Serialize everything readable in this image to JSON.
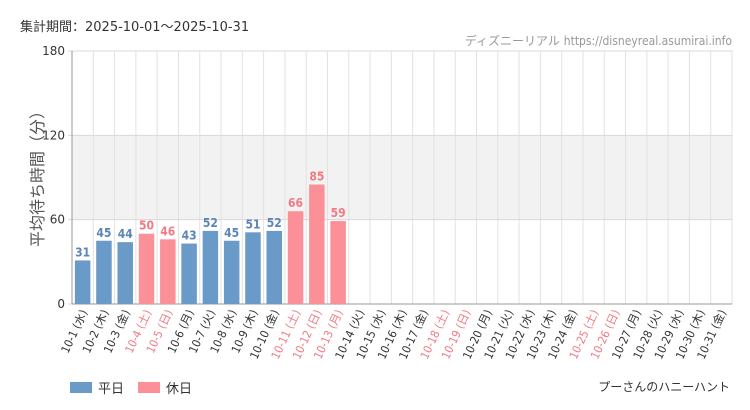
{
  "header": {
    "period": "集計期間：2025-10-01〜2025-10-31",
    "site": "ディズニーリアル",
    "url": "https://disneyreal.asumirai.info"
  },
  "footer": {
    "attraction": "プーさんのハニーハント"
  },
  "colors": {
    "weekday": "#6a9ac8",
    "holiday": "#fc9098",
    "weekday_text": "#5b85b5",
    "holiday_text": "#f07a85",
    "band": "#f2f2f2",
    "grid": "#e2e2e2"
  },
  "chart_data": {
    "type": "bar",
    "ylabel": "平均待ち時間（分）",
    "ylim": [
      0,
      180
    ],
    "yticks": [
      0,
      60,
      120,
      180
    ],
    "shaded_band": [
      60,
      120
    ],
    "grid": true,
    "legend_position": "bottom-left",
    "legend": [
      {
        "name": "平日",
        "type": "weekday"
      },
      {
        "name": "休日",
        "type": "holiday"
      }
    ],
    "categories": [
      "10-1 (水)",
      "10-2 (木)",
      "10-3 (金)",
      "10-4 (土)",
      "10-5 (日)",
      "10-6 (月)",
      "10-7 (火)",
      "10-8 (水)",
      "10-9 (木)",
      "10-10 (金)",
      "10-11 (土)",
      "10-12 (日)",
      "10-13 (月)",
      "10-14 (火)",
      "10-15 (水)",
      "10-16 (木)",
      "10-17 (金)",
      "10-18 (土)",
      "10-19 (日)",
      "10-20 (月)",
      "10-21 (火)",
      "10-22 (水)",
      "10-23 (木)",
      "10-24 (金)",
      "10-25 (土)",
      "10-26 (日)",
      "10-27 (月)",
      "10-28 (火)",
      "10-29 (水)",
      "10-30 (木)",
      "10-31 (金)"
    ],
    "day_types": [
      "weekday",
      "weekday",
      "weekday",
      "holiday",
      "holiday",
      "weekday",
      "weekday",
      "weekday",
      "weekday",
      "weekday",
      "holiday",
      "holiday",
      "holiday",
      "weekday",
      "weekday",
      "weekday",
      "weekday",
      "holiday",
      "holiday",
      "weekday",
      "weekday",
      "weekday",
      "weekday",
      "weekday",
      "holiday",
      "holiday",
      "weekday",
      "weekday",
      "weekday",
      "weekday",
      "weekday"
    ],
    "values": [
      31,
      45,
      44,
      50,
      46,
      43,
      52,
      45,
      51,
      52,
      66,
      85,
      59,
      null,
      null,
      null,
      null,
      null,
      null,
      null,
      null,
      null,
      null,
      null,
      null,
      null,
      null,
      null,
      null,
      null,
      null
    ]
  }
}
